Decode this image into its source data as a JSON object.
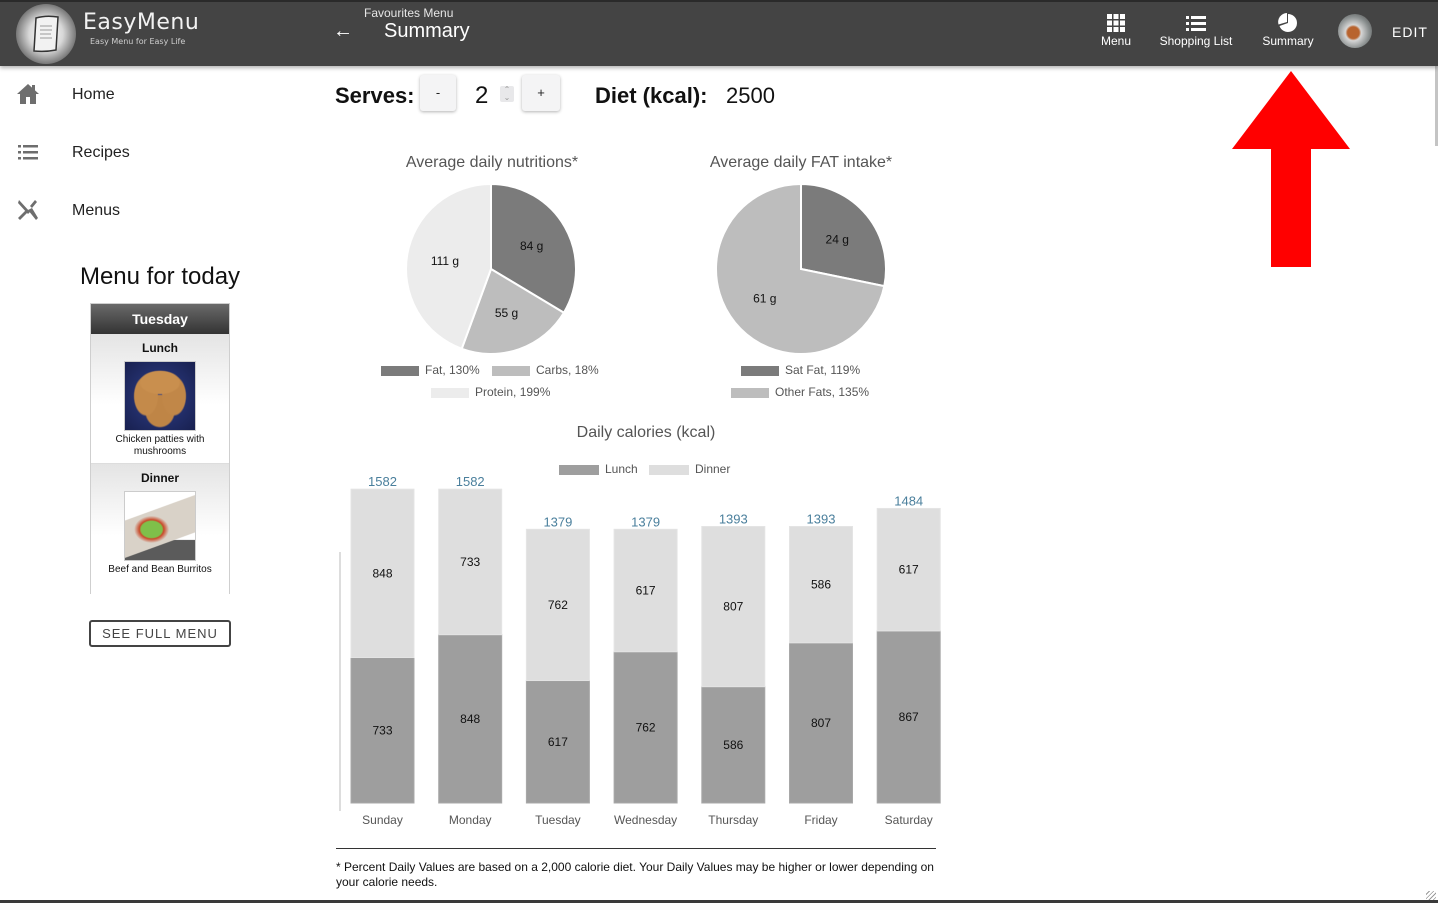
{
  "header": {
    "brand": "EasyMenu",
    "tagline": "Easy Menu for Easy Life",
    "breadcrumb_parent": "Favourites Menu",
    "page_title": "Summary",
    "nav": [
      {
        "label": "Menu",
        "icon": "grid-icon"
      },
      {
        "label": "Shopping List",
        "icon": "list-icon"
      },
      {
        "label": "Summary",
        "icon": "pie-chart-icon"
      }
    ],
    "edit_label": "EDIT"
  },
  "sidebar": {
    "items": [
      {
        "label": "Home",
        "icon": "home-icon"
      },
      {
        "label": "Recipes",
        "icon": "list-icon"
      },
      {
        "label": "Menus",
        "icon": "utensils-icon"
      }
    ],
    "today_title": "Menu for today",
    "day": "Tuesday",
    "meals": [
      {
        "type": "Lunch",
        "name": "Chicken patties with mushrooms"
      },
      {
        "type": "Dinner",
        "name": "Beef and Bean Burritos"
      }
    ],
    "see_full_menu": "SEE FULL MENU"
  },
  "controls": {
    "serves_label": "Serves:",
    "serves_value": "2",
    "minus_label": "-",
    "plus_label": "+",
    "diet_label": "Diet (kcal):",
    "diet_value": "2500"
  },
  "chart_data": [
    {
      "type": "pie",
      "title": "Average daily nutritions*",
      "slices": [
        {
          "name": "Fat",
          "value": 84,
          "label": "84 g",
          "legend": "Fat, 130%",
          "color": "#7b7b7b"
        },
        {
          "name": "Carbs",
          "value": 55,
          "label": "55 g",
          "legend": "Carbs, 18%",
          "color": "#bdbdbd"
        },
        {
          "name": "Protein",
          "value": 111,
          "label": "111 g",
          "legend": "Protein, 199%",
          "color": "#ececec"
        }
      ],
      "legend": "bottom"
    },
    {
      "type": "pie",
      "title": "Average daily FAT intake*",
      "slices": [
        {
          "name": "Sat Fat",
          "value": 24,
          "label": "24 g",
          "legend": "Sat Fat, 119%",
          "color": "#7b7b7b"
        },
        {
          "name": "Other Fats",
          "value": 61,
          "label": "61 g",
          "legend": "Other Fats, 135%",
          "color": "#bdbdbd"
        }
      ],
      "legend": "bottom"
    },
    {
      "type": "bar",
      "stacked": true,
      "title": "Daily calories (kcal)",
      "categories": [
        "Sunday",
        "Monday",
        "Tuesday",
        "Wednesday",
        "Thursday",
        "Friday",
        "Saturday"
      ],
      "series": [
        {
          "name": "Lunch",
          "color": "#9e9e9e",
          "values": [
            733,
            848,
            617,
            762,
            586,
            807,
            867
          ]
        },
        {
          "name": "Dinner",
          "color": "#dedede",
          "values": [
            848,
            733,
            762,
            617,
            807,
            586,
            617
          ]
        }
      ],
      "totals": [
        1582,
        1582,
        1379,
        1379,
        1393,
        1393,
        1484
      ],
      "total_label_color": "#4a7f9c",
      "ylim": [
        0,
        1582
      ],
      "grid": false,
      "legend": "top"
    }
  ],
  "footnote": "* Percent Daily Values are based on a 2,000 calorie diet. Your Daily Values may be higher or lower depending on your calorie needs.",
  "annotation": {
    "arrow_color": "#ff0000"
  }
}
